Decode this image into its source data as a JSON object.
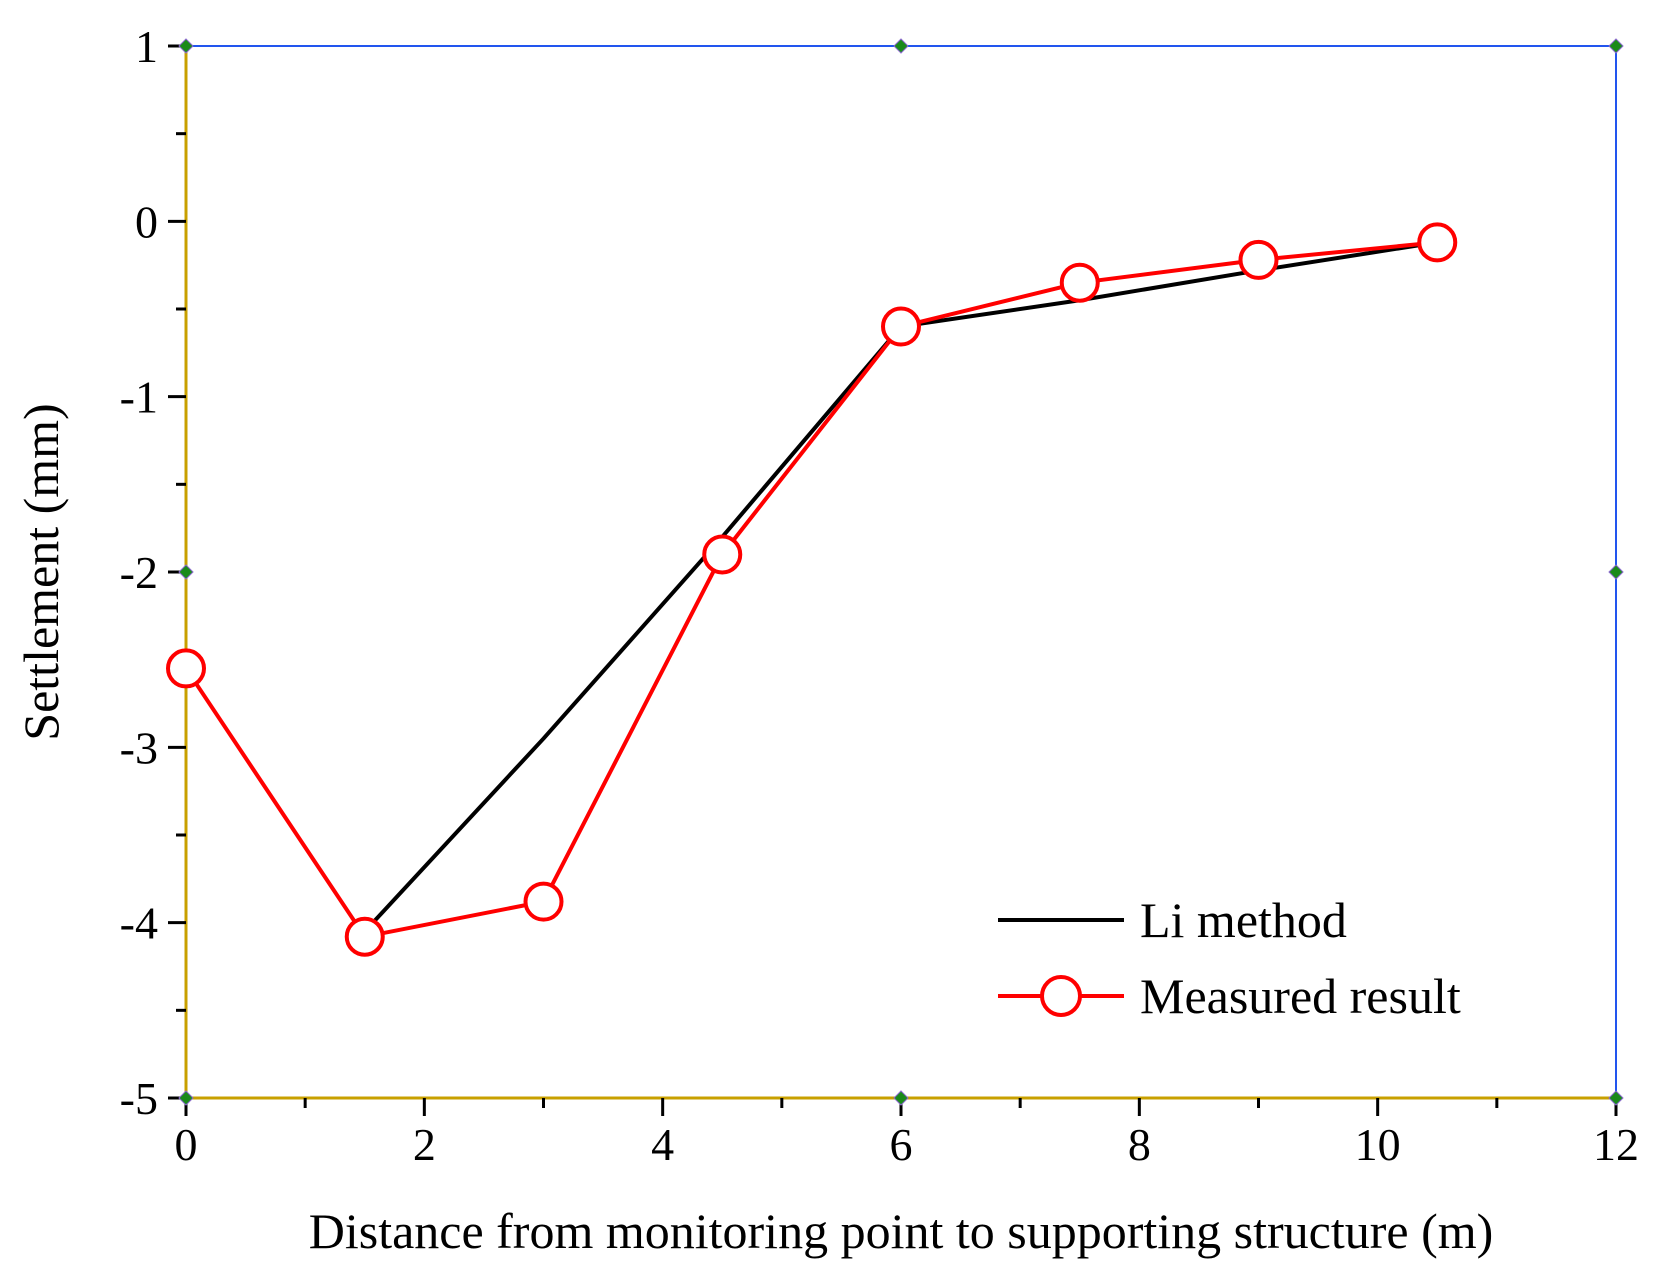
{
  "chart_data": {
    "type": "line",
    "title": "",
    "xlabel": "Distance from monitoring point to supporting structure (m)",
    "ylabel": "Settlement (mm)",
    "xlim": [
      0,
      12
    ],
    "ylim": [
      -5,
      1
    ],
    "x_ticks": [
      0,
      2,
      4,
      6,
      8,
      10,
      12
    ],
    "y_ticks": [
      1,
      0,
      -1,
      -2,
      -3,
      -4,
      -5
    ],
    "x_tick_labels": [
      "0",
      "2",
      "4",
      "6",
      "8",
      "10",
      "12"
    ],
    "y_tick_labels": [
      "1",
      "0",
      "-1",
      "-2",
      "-3",
      "-4",
      "-5"
    ],
    "grid": false,
    "legend_position": "bottom-right",
    "series": [
      {
        "name": "Li method",
        "color": "#000000",
        "marker": "none",
        "x": [
          1.5,
          3,
          4.5,
          6,
          7.5,
          9,
          10.5
        ],
        "y": [
          -4.05,
          -2.95,
          -1.8,
          -0.6,
          -0.45,
          -0.28,
          -0.12
        ]
      },
      {
        "name": "Measured result",
        "color": "#ff0000",
        "marker": "open-circle",
        "x": [
          0,
          1.5,
          3,
          4.5,
          6,
          7.5,
          9,
          10.5
        ],
        "y": [
          -2.55,
          -4.08,
          -3.88,
          -1.9,
          -0.6,
          -0.35,
          -0.22,
          -0.12
        ]
      }
    ]
  }
}
